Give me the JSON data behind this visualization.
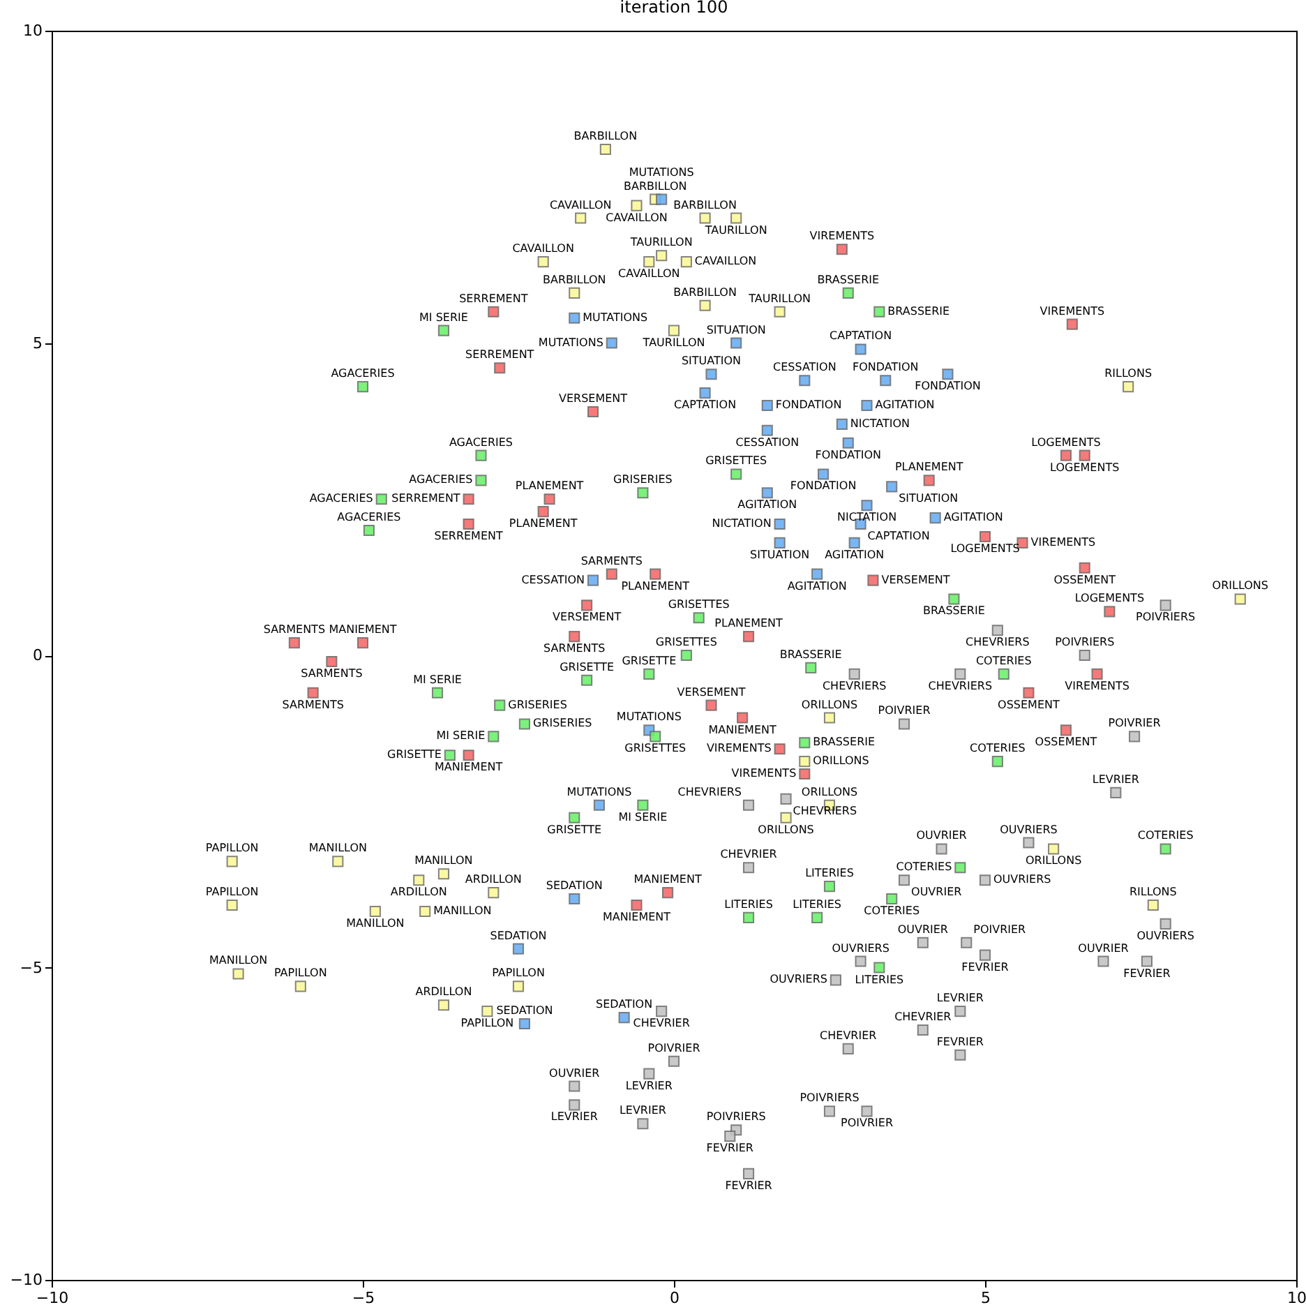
{
  "chart_data": {
    "type": "scatter",
    "title": "iteration 100",
    "xlim": [
      -10,
      10
    ],
    "ylim": [
      -10,
      10
    ],
    "xticks": [
      -10,
      -5,
      0,
      5,
      10
    ],
    "yticks": [
      -10,
      -5,
      0,
      5,
      10
    ],
    "grid": false,
    "marker": "square",
    "series": [
      {
        "color": "#fbf79a",
        "x": [
          -1.1,
          -0.3,
          -0.6,
          -1.5,
          0.5,
          1.0,
          -2.1,
          -0.4,
          -0.2,
          0.2,
          -1.6,
          0.5,
          1.7,
          0.0,
          7.3,
          9.1,
          2.5,
          2.1,
          2.5,
          1.8,
          6.1,
          7.7,
          -7.1,
          -5.4,
          -4.1,
          -3.7,
          -2.9,
          -7.1,
          -4.8,
          -4.0,
          -7.0,
          -6.0,
          -3.7,
          -2.5,
          -3.0
        ],
        "values": [
          8.1,
          7.3,
          7.2,
          7.0,
          7.0,
          7.0,
          6.3,
          6.3,
          6.4,
          6.3,
          5.8,
          5.6,
          5.5,
          5.2,
          4.3,
          0.9,
          -1.0,
          -1.7,
          -2.4,
          -2.6,
          -3.1,
          -4.0,
          -3.3,
          -3.3,
          -3.6,
          -3.5,
          -3.8,
          -4.0,
          -4.1,
          -4.1,
          -5.1,
          -5.3,
          -5.6,
          -5.3,
          -5.7
        ],
        "value_labels": [
          "BARBILLON",
          "BARBILLON",
          "CAVAILLON",
          "CAVAILLON",
          "BARBILLON",
          "TAURILLON",
          "CAVAILLON",
          "CAVAILLON",
          "TAURILLON",
          "CAVAILLON",
          "BARBILLON",
          "BARBILLON",
          "TAURILLON",
          "TAURILLON",
          "RILLONS",
          "ORILLONS",
          "ORILLONS",
          "ORILLONS",
          "ORILLONS",
          "ORILLONS",
          "ORILLONS",
          "RILLONS",
          "PAPILLON",
          "MANILLON",
          "ARDILLON",
          "MANILLON",
          "ARDILLON",
          "PAPILLON",
          "MANILLON",
          "MANILLON",
          "MANILLON",
          "PAPILLON",
          "ARDILLON",
          "PAPILLON",
          "PAPILLON"
        ]
      },
      {
        "color": "#6aaef2",
        "x": [
          -0.2,
          -1.6,
          -1.0,
          1.0,
          3.0,
          0.6,
          2.1,
          3.4,
          4.4,
          0.5,
          1.5,
          3.1,
          2.7,
          1.5,
          2.8,
          2.4,
          1.5,
          3.5,
          3.1,
          3.0,
          4.2,
          1.7,
          1.7,
          2.9,
          2.3,
          -1.3,
          -0.4,
          -1.2,
          -1.6,
          -2.5,
          -2.4,
          -0.8
        ],
        "values": [
          7.3,
          5.4,
          5.0,
          5.0,
          4.9,
          4.5,
          4.4,
          4.4,
          4.5,
          4.2,
          4.0,
          4.0,
          3.7,
          3.6,
          3.4,
          2.9,
          2.6,
          2.7,
          2.4,
          2.1,
          2.2,
          2.1,
          1.8,
          1.8,
          1.3,
          1.2,
          -1.2,
          -2.4,
          -3.9,
          -4.7,
          -5.9,
          -5.8
        ],
        "value_labels": [
          "MUTATIONS",
          "MUTATIONS",
          "MUTATIONS",
          "SITUATION",
          "CAPTATION",
          "SITUATION",
          "CESSATION",
          "FONDATION",
          "FONDATION",
          "CAPTATION",
          "FONDATION",
          "AGITATION",
          "NICTATION",
          "CESSATION",
          "FONDATION",
          "FONDATION",
          "AGITATION",
          "SITUATION",
          "NICTATION",
          "CAPTATION",
          "AGITATION",
          "NICTATION",
          "SITUATION",
          "AGITATION",
          "AGITATION",
          "CESSATION",
          "MUTATIONS",
          "MUTATIONS",
          "SEDATION",
          "SEDATION",
          "SEDATION",
          "SEDATION"
        ]
      },
      {
        "color": "#f56c6c",
        "x": [
          2.7,
          -2.9,
          -2.8,
          -1.3,
          6.4,
          6.3,
          6.6,
          4.1,
          -3.3,
          -3.3,
          -2.0,
          -2.1,
          5.0,
          5.6,
          6.6,
          -1.0,
          -0.3,
          -1.4,
          3.2,
          7.0,
          -1.6,
          1.2,
          -6.1,
          -5.0,
          -5.5,
          -5.8,
          0.6,
          1.1,
          6.8,
          5.7,
          6.3,
          1.7,
          2.1,
          -3.3,
          -0.6,
          -0.1
        ],
        "values": [
          6.5,
          5.5,
          4.6,
          3.9,
          5.3,
          3.2,
          3.2,
          2.8,
          2.5,
          2.1,
          2.5,
          2.3,
          1.9,
          1.8,
          1.4,
          1.3,
          1.3,
          0.8,
          1.2,
          0.7,
          0.3,
          0.3,
          0.2,
          0.2,
          -0.1,
          -0.6,
          -0.8,
          -1.0,
          -0.3,
          -0.6,
          -1.2,
          -1.5,
          -1.9,
          -1.6,
          -4.0,
          -3.8
        ],
        "value_labels": [
          "VIREMENTS",
          "SERREMENT",
          "SERREMENT",
          "VERSEMENT",
          "VIREMENTS",
          "LOGEMENTS",
          "LOGEMENTS",
          "PLANEMENT",
          "SERREMENT",
          "SERREMENT",
          "PLANEMENT",
          "PLANEMENT",
          "LOGEMENTS",
          "VIREMENTS",
          "OSSEMENT",
          "SARMENTS",
          "PLANEMENT",
          "VERSEMENT",
          "VERSEMENT",
          "LOGEMENTS",
          "SARMENTS",
          "PLANEMENT",
          "SARMENTS",
          "MANIEMENT",
          "SARMENTS",
          "SARMENTS",
          "VERSEMENT",
          "MANIEMENT",
          "VIREMENTS",
          "OSSEMENT",
          "OSSEMENT",
          "VIREMENTS",
          "VIREMENTS",
          "MANIEMENT",
          "MANIEMENT",
          "MANIEMENT"
        ]
      },
      {
        "color": "#6ef06e",
        "x": [
          2.8,
          3.3,
          -3.7,
          -5.0,
          -3.1,
          -3.1,
          -4.7,
          -4.9,
          -0.5,
          1.0,
          0.4,
          0.2,
          -1.4,
          -0.4,
          4.5,
          2.2,
          -3.8,
          -2.8,
          -2.4,
          -2.9,
          -0.3,
          -3.6,
          5.3,
          5.2,
          2.1,
          -0.5,
          -1.6,
          7.9,
          4.6,
          3.5,
          2.5,
          1.2,
          2.3,
          3.3
        ],
        "values": [
          5.8,
          5.5,
          5.2,
          4.3,
          3.2,
          2.8,
          2.5,
          2.0,
          2.6,
          2.9,
          0.6,
          0.0,
          -0.4,
          -0.3,
          0.9,
          -0.2,
          -0.6,
          -0.8,
          -1.1,
          -1.3,
          -1.3,
          -1.6,
          -0.3,
          -1.7,
          -1.4,
          -2.4,
          -2.6,
          -3.1,
          -3.4,
          -3.9,
          -3.7,
          -4.2,
          -4.2,
          -5.0
        ],
        "value_labels": [
          "BRASSERIE",
          "BRASSERIE",
          "MI SERIE",
          "AGACERIES",
          "AGACERIES",
          "AGACERIES",
          "AGACERIES",
          "AGACERIES",
          "GRISERIES",
          "GRISETTES",
          "GRISETTES",
          "GRISETTES",
          "GRISETTE",
          "GRISETTE",
          "BRASSERIE",
          "BRASSERIE",
          "MI SERIE",
          "GRISERIES",
          "GRISERIES",
          "MI SERIE",
          "GRISETTES",
          "GRISETTE",
          "COTERIES",
          "COTERIES",
          "BRASSERIE",
          "MI SERIE",
          "GRISETTE",
          "COTERIES",
          "COTERIES",
          "COTERIES",
          "LITERIES",
          "LITERIES",
          "LITERIES",
          "LITERIES"
        ]
      },
      {
        "color": "#c3c3c3",
        "x": [
          5.2,
          2.9,
          4.6,
          6.6,
          7.9,
          3.7,
          7.4,
          1.2,
          1.8,
          7.1,
          1.2,
          4.3,
          5.7,
          3.7,
          5.0,
          7.9,
          4.0,
          4.7,
          5.0,
          3.0,
          2.6,
          6.9,
          7.6,
          4.6,
          -0.2,
          2.8,
          4.0,
          4.6,
          0.0,
          -0.4,
          -1.6,
          -1.6,
          -0.5,
          2.5,
          3.1,
          1.0,
          0.9,
          1.2
        ],
        "values": [
          0.4,
          -0.3,
          -0.3,
          0.0,
          0.8,
          -1.1,
          -1.3,
          -2.4,
          -2.3,
          -2.2,
          -3.4,
          -3.1,
          -3.0,
          -3.6,
          -3.6,
          -4.3,
          -4.6,
          -4.6,
          -4.8,
          -4.9,
          -5.2,
          -4.9,
          -4.9,
          -5.7,
          -5.7,
          -6.3,
          -6.0,
          -6.4,
          -6.5,
          -6.7,
          -6.9,
          -7.2,
          -7.5,
          -7.3,
          -7.3,
          -7.6,
          -7.7,
          -8.3
        ],
        "value_labels": [
          "CHEVRIERS",
          "CHEVRIERS",
          "CHEVRIERS",
          "POIVRIERS",
          "POIVRIERS",
          "POIVRIER",
          "POIVRIER",
          "CHEVRIERS",
          "CHEVRIERS",
          "LEVRIER",
          "CHEVRIER",
          "OUVRIER",
          "OUVRIERS",
          "OUVRIER",
          "OUVRIERS",
          "OUVRIERS",
          "OUVRIER",
          "POIVRIER",
          "FEVRIER",
          "OUVRIERS",
          "OUVRIERS",
          "OUVRIER",
          "FEVRIER",
          "LEVRIER",
          "CHEVRIER",
          "CHEVRIER",
          "CHEVRIER",
          "FEVRIER",
          "POIVRIER",
          "LEVRIER",
          "OUVRIER",
          "LEVRIER",
          "LEVRIER",
          "POIVRIERS",
          "POIVRIER",
          "POIVRIERS",
          "FEVRIER",
          "FEVRIER"
        ]
      }
    ]
  }
}
